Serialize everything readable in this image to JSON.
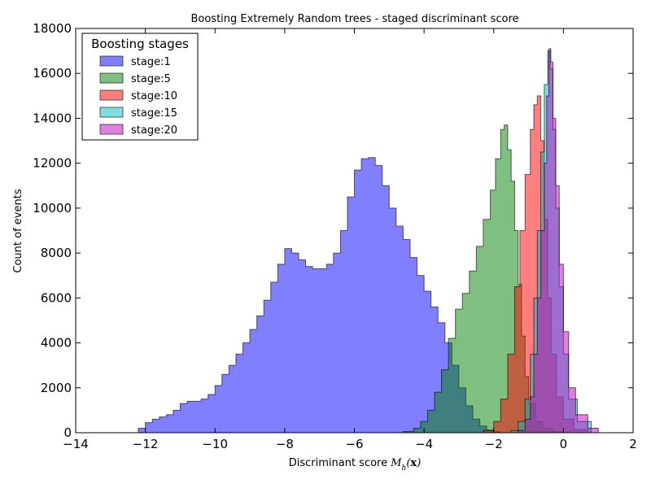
{
  "chart_data": {
    "type": "area",
    "title": "Boosting Extremely Random trees - staged discriminant score",
    "xlabel": "Discriminant score ",
    "xlabel_math": "M_h(x)",
    "ylabel": "Count of events",
    "xlim": [
      -14,
      2
    ],
    "ylim": [
      0,
      18000
    ],
    "x_ticks": [
      -14,
      -12,
      -10,
      -8,
      -6,
      -4,
      -2,
      0,
      2
    ],
    "y_ticks": [
      0,
      2000,
      4000,
      6000,
      8000,
      10000,
      12000,
      14000,
      16000,
      18000
    ],
    "legend": {
      "title": "Boosting stages",
      "placement": "top-left"
    },
    "series": [
      {
        "name": "stage:1",
        "color": "#0000ff",
        "points": [
          [
            -12.4,
            0
          ],
          [
            -12.2,
            200
          ],
          [
            -12.0,
            450
          ],
          [
            -11.8,
            600
          ],
          [
            -11.6,
            700
          ],
          [
            -11.4,
            800
          ],
          [
            -11.2,
            1000
          ],
          [
            -11.0,
            1300
          ],
          [
            -10.8,
            1400
          ],
          [
            -10.6,
            1400
          ],
          [
            -10.4,
            1500
          ],
          [
            -10.2,
            1700
          ],
          [
            -10.0,
            2100
          ],
          [
            -9.8,
            2600
          ],
          [
            -9.6,
            3000
          ],
          [
            -9.4,
            3500
          ],
          [
            -9.2,
            4000
          ],
          [
            -9.0,
            4600
          ],
          [
            -8.8,
            5200
          ],
          [
            -8.6,
            5900
          ],
          [
            -8.4,
            6700
          ],
          [
            -8.2,
            7500
          ],
          [
            -8.0,
            8200
          ],
          [
            -7.8,
            8000
          ],
          [
            -7.6,
            7700
          ],
          [
            -7.4,
            7400
          ],
          [
            -7.2,
            7300
          ],
          [
            -7.0,
            7300
          ],
          [
            -6.8,
            7500
          ],
          [
            -6.6,
            8000
          ],
          [
            -6.4,
            9000
          ],
          [
            -6.2,
            10500
          ],
          [
            -6.0,
            11700
          ],
          [
            -5.8,
            12200
          ],
          [
            -5.6,
            12250
          ],
          [
            -5.4,
            11900
          ],
          [
            -5.2,
            11000
          ],
          [
            -5.0,
            10000
          ],
          [
            -4.8,
            9200
          ],
          [
            -4.6,
            8600
          ],
          [
            -4.4,
            7800
          ],
          [
            -4.2,
            7000
          ],
          [
            -4.0,
            6300
          ],
          [
            -3.8,
            5600
          ],
          [
            -3.6,
            4900
          ],
          [
            -3.4,
            4000
          ],
          [
            -3.2,
            3000
          ],
          [
            -3.0,
            2000
          ],
          [
            -2.8,
            1200
          ],
          [
            -2.6,
            600
          ],
          [
            -2.4,
            300
          ],
          [
            -2.2,
            120
          ],
          [
            -2.0,
            40
          ],
          [
            -1.8,
            0
          ]
        ]
      },
      {
        "name": "stage:5",
        "color": "#008000",
        "points": [
          [
            -5.0,
            0
          ],
          [
            -4.6,
            50
          ],
          [
            -4.3,
            200
          ],
          [
            -4.1,
            500
          ],
          [
            -3.9,
            1000
          ],
          [
            -3.7,
            1800
          ],
          [
            -3.5,
            2800
          ],
          [
            -3.3,
            4200
          ],
          [
            -3.1,
            5500
          ],
          [
            -2.9,
            6200
          ],
          [
            -2.7,
            7200
          ],
          [
            -2.5,
            8300
          ],
          [
            -2.3,
            9500
          ],
          [
            -2.1,
            10800
          ],
          [
            -1.95,
            12200
          ],
          [
            -1.8,
            13500
          ],
          [
            -1.7,
            13700
          ],
          [
            -1.6,
            12600
          ],
          [
            -1.5,
            11200
          ],
          [
            -1.4,
            9000
          ],
          [
            -1.3,
            6600
          ],
          [
            -1.2,
            4300
          ],
          [
            -1.1,
            2500
          ],
          [
            -1.0,
            1300
          ],
          [
            -0.8,
            500
          ],
          [
            -0.6,
            200
          ],
          [
            -0.3,
            50
          ],
          [
            0.0,
            0
          ]
        ]
      },
      {
        "name": "stage:10",
        "color": "#ff0000",
        "points": [
          [
            -2.6,
            0
          ],
          [
            -2.3,
            100
          ],
          [
            -2.0,
            500
          ],
          [
            -1.8,
            1500
          ],
          [
            -1.6,
            3500
          ],
          [
            -1.4,
            6500
          ],
          [
            -1.25,
            9000
          ],
          [
            -1.1,
            11500
          ],
          [
            -0.95,
            13500
          ],
          [
            -0.85,
            14600
          ],
          [
            -0.75,
            15000
          ],
          [
            -0.65,
            13000
          ],
          [
            -0.55,
            9500
          ],
          [
            -0.45,
            6000
          ],
          [
            -0.35,
            3500
          ],
          [
            -0.2,
            1600
          ],
          [
            0.0,
            600
          ],
          [
            0.3,
            150
          ],
          [
            0.7,
            0
          ]
        ]
      },
      {
        "name": "stage:15",
        "color": "#00c0c0",
        "points": [
          [
            -1.8,
            0
          ],
          [
            -1.5,
            100
          ],
          [
            -1.3,
            500
          ],
          [
            -1.1,
            1500
          ],
          [
            -0.95,
            3500
          ],
          [
            -0.85,
            6000
          ],
          [
            -0.75,
            9000
          ],
          [
            -0.65,
            12500
          ],
          [
            -0.55,
            15500
          ],
          [
            -0.45,
            17000
          ],
          [
            -0.38,
            16200
          ],
          [
            -0.3,
            13500
          ],
          [
            -0.22,
            10000
          ],
          [
            -0.12,
            6500
          ],
          [
            0.0,
            3500
          ],
          [
            0.15,
            1500
          ],
          [
            0.4,
            500
          ],
          [
            0.8,
            0
          ]
        ]
      },
      {
        "name": "stage:20",
        "color": "#c000c0",
        "points": [
          [
            -1.6,
            0
          ],
          [
            -1.3,
            100
          ],
          [
            -1.1,
            600
          ],
          [
            -0.95,
            1600
          ],
          [
            -0.85,
            3500
          ],
          [
            -0.75,
            6000
          ],
          [
            -0.65,
            9000
          ],
          [
            -0.55,
            12000
          ],
          [
            -0.48,
            15000
          ],
          [
            -0.42,
            17100
          ],
          [
            -0.36,
            16500
          ],
          [
            -0.3,
            14000
          ],
          [
            -0.22,
            11000
          ],
          [
            -0.12,
            7500
          ],
          [
            0.0,
            4500
          ],
          [
            0.15,
            2000
          ],
          [
            0.35,
            800
          ],
          [
            0.7,
            200
          ],
          [
            1.0,
            0
          ]
        ]
      }
    ]
  }
}
